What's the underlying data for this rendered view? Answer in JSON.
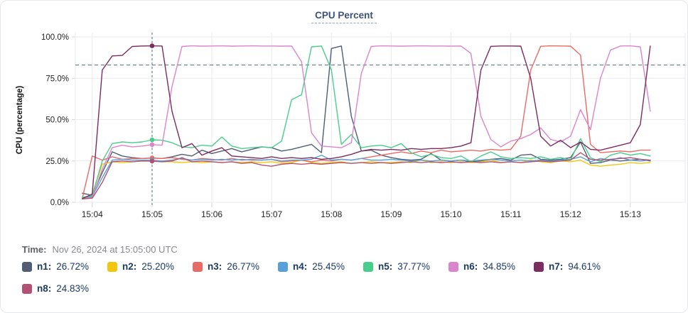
{
  "header": {
    "title": "CPU Percent"
  },
  "time_info": {
    "label": "Time:",
    "value": "Nov 26, 2024 at 15:05:00 UTC"
  },
  "legend": {
    "items": [
      {
        "name": "n1",
        "label": "n1:",
        "value": "26.72%",
        "color": "#4f5d75"
      },
      {
        "name": "n2",
        "label": "n2:",
        "value": "25.20%",
        "color": "#f3c710"
      },
      {
        "name": "n3",
        "label": "n3:",
        "value": "26.77%",
        "color": "#ea6a65"
      },
      {
        "name": "n4",
        "label": "n4:",
        "value": "25.45%",
        "color": "#58a1d8"
      },
      {
        "name": "n5",
        "label": "n5:",
        "value": "37.77%",
        "color": "#49cd8c"
      },
      {
        "name": "n6",
        "label": "n6:",
        "value": "34.85%",
        "color": "#da85cc"
      },
      {
        "name": "n7",
        "label": "n7:",
        "value": "94.61%",
        "color": "#7b2d60"
      },
      {
        "name": "n8",
        "label": "n8:",
        "value": "24.83%",
        "color": "#b05273"
      }
    ]
  },
  "chart_data": {
    "type": "line",
    "title": "CPU Percent",
    "xlabel": "",
    "ylabel": "CPU (percentage)",
    "ylim": [
      0,
      100
    ],
    "grid": true,
    "legend_position": "bottom",
    "yticks": [
      {
        "value": 0,
        "label": "0.0%"
      },
      {
        "value": 25,
        "label": "25.0%"
      },
      {
        "value": 50,
        "label": "50.0%"
      },
      {
        "value": 75,
        "label": "75.0%"
      },
      {
        "value": 100,
        "label": "100.0%"
      }
    ],
    "xticks": [
      "15:04",
      "15:05",
      "15:06",
      "15:07",
      "15:08",
      "15:09",
      "15:10",
      "15:11",
      "15:12",
      "15:13"
    ],
    "x_tick_seconds": [
      240,
      300,
      360,
      420,
      480,
      540,
      600,
      660,
      720,
      780
    ],
    "x_domain_seconds": [
      223,
      835
    ],
    "x_start_seconds": 230,
    "x_step_seconds": 10,
    "threshold": {
      "value": 83,
      "style": "dashed",
      "color": "#4c6e7d"
    },
    "crosshair": {
      "time": "15:05",
      "seconds": 300,
      "color": "#4c6e7d"
    },
    "series": [
      {
        "name": "n1",
        "color": "#4f5d75",
        "at_crosshair": 26.72,
        "values": [
          5.5,
          4.2,
          18,
          30.5,
          28,
          27,
          26.5,
          26.72,
          26.5,
          27.5,
          29,
          28,
          31.5,
          29.5,
          31,
          32.5,
          30.5,
          32,
          33.5,
          33,
          31,
          32,
          33.5,
          35,
          30,
          93,
          94.5,
          52,
          31,
          31.5,
          28.5,
          27,
          26,
          25.5,
          26,
          29.5,
          25.5,
          25,
          25.5,
          24.5,
          25,
          26,
          26.5,
          25.5,
          28.5,
          29,
          26,
          25.5,
          26,
          27,
          36.5,
          23.5,
          24,
          25.5,
          25,
          25.5,
          26,
          25
        ]
      },
      {
        "name": "n2",
        "color": "#f3c710",
        "at_crosshair": 25.2,
        "values": [
          2,
          5,
          23,
          24.5,
          24,
          24.5,
          25,
          25.2,
          24.5,
          24.5,
          24,
          24.5,
          24,
          24.5,
          24,
          24.5,
          24,
          24.5,
          24,
          24.5,
          23.5,
          24,
          25.5,
          24,
          23.5,
          24,
          24.5,
          23.5,
          24,
          24.5,
          24,
          24,
          24.5,
          24,
          25.5,
          24,
          24.5,
          24,
          24.5,
          24,
          24.5,
          25.5,
          24,
          24.5,
          24,
          25.5,
          24.5,
          24,
          25,
          24.5,
          25.5,
          22.5,
          21.8,
          22.5,
          23,
          24,
          23.5,
          24
        ]
      },
      {
        "name": "n3",
        "color": "#ea6a65",
        "at_crosshair": 26.77,
        "values": [
          2.5,
          28,
          25.5,
          27.5,
          26,
          26.5,
          26.5,
          26.77,
          26.5,
          27,
          26,
          25.5,
          26.5,
          26,
          25.5,
          26.5,
          25.5,
          26,
          25.5,
          26,
          24.5,
          25,
          25.5,
          24.5,
          25.5,
          25,
          26,
          25.5,
          26.5,
          27.5,
          28.5,
          29.5,
          30.5,
          29.5,
          31,
          30,
          31.5,
          30.5,
          31,
          31.5,
          31,
          32,
          31.5,
          32,
          40,
          80,
          94.3,
          94.6,
          94.5,
          94.4,
          89,
          35,
          30,
          30.5,
          31,
          30.5,
          31.5,
          31.5
        ]
      },
      {
        "name": "n4",
        "color": "#58a1d8",
        "at_crosshair": 25.45,
        "values": [
          2.8,
          3.5,
          15,
          25.5,
          26,
          25.5,
          25.5,
          25.45,
          25,
          25.5,
          26.5,
          25.5,
          26,
          25.5,
          26,
          25.5,
          26,
          25.5,
          25.5,
          26,
          25,
          25.5,
          25.5,
          26,
          28.5,
          25.5,
          26,
          25.5,
          26.5,
          25.5,
          25.5,
          26,
          25.5,
          25,
          25.5,
          25,
          25.5,
          25,
          25.5,
          25,
          25.5,
          26,
          25.5,
          25,
          25.5,
          25,
          25.5,
          25,
          25.5,
          26,
          27.5,
          24.5,
          26.5,
          25.5,
          27,
          25.5,
          25,
          25.5
        ]
      },
      {
        "name": "n5",
        "color": "#49cd8c",
        "at_crosshair": 37.77,
        "values": [
          3,
          4,
          25,
          35.5,
          36.5,
          36,
          36.5,
          37.77,
          37.5,
          36,
          33.5,
          33,
          34.5,
          34,
          39.5,
          34,
          32.5,
          33,
          33.5,
          33,
          37,
          62,
          65,
          94,
          94.5,
          80,
          35,
          41,
          33,
          34,
          34.5,
          33,
          35.5,
          30,
          27.5,
          29,
          27,
          26.5,
          28,
          24.5,
          28,
          30.5,
          27.5,
          26.5,
          27,
          26.5,
          27.5,
          26,
          27,
          25.5,
          38.5,
          27,
          24.5,
          28.5,
          30,
          28.5,
          29.5,
          28
        ]
      },
      {
        "name": "n6",
        "color": "#da85cc",
        "at_crosshair": 34.85,
        "values": [
          2,
          3,
          20,
          33,
          34.5,
          33.5,
          34,
          34.85,
          34.5,
          70,
          94.2,
          94.6,
          94.4,
          94.5,
          94.6,
          94.4,
          94.5,
          94.6,
          94.5,
          94.5,
          94.4,
          94.5,
          85,
          42,
          34,
          33.5,
          33,
          36,
          78,
          94.3,
          94.6,
          94.5,
          94.4,
          94.5,
          94.6,
          94.5,
          94.5,
          94.4,
          94.5,
          90,
          52,
          38,
          33.5,
          37,
          38.5,
          41,
          45,
          38,
          36.5,
          40,
          56,
          44,
          75,
          92,
          94.5,
          94.6,
          94,
          55
        ]
      },
      {
        "name": "n7",
        "color": "#7b2d60",
        "at_crosshair": 94.61,
        "values": [
          2.2,
          5,
          80,
          88.5,
          88.8,
          94.2,
          94.5,
          94.61,
          94.5,
          55,
          33,
          35.5,
          28.5,
          31,
          33,
          28,
          27.5,
          27,
          26.5,
          27.5,
          26.5,
          27,
          26.5,
          27,
          26,
          26.5,
          27.5,
          29,
          31,
          32,
          31.5,
          32,
          31.5,
          32.5,
          32,
          32.5,
          32.5,
          33,
          34,
          36,
          80,
          94.3,
          94.5,
          94.5,
          94.4,
          75,
          40,
          34,
          37.5,
          33,
          36.5,
          32,
          31.5,
          33,
          34.5,
          36,
          47,
          94.5
        ]
      },
      {
        "name": "n8",
        "color": "#b05273",
        "at_crosshair": 24.83,
        "values": [
          2,
          2.5,
          12,
          24.5,
          25,
          24.5,
          25,
          24.83,
          24.5,
          25,
          27,
          24.5,
          25,
          24.5,
          24,
          24.5,
          23.5,
          24,
          22.5,
          21.8,
          23,
          23.5,
          23,
          23.5,
          23,
          23.5,
          24,
          23.5,
          24,
          23.5,
          24,
          23.5,
          24,
          24.5,
          24,
          24.5,
          24,
          24.5,
          24,
          24.5,
          24,
          24.5,
          24,
          24.5,
          24,
          24.5,
          25,
          24.5,
          25,
          25.5,
          30,
          26,
          25.5,
          26,
          26.5,
          27,
          26,
          25.5
        ]
      }
    ]
  }
}
